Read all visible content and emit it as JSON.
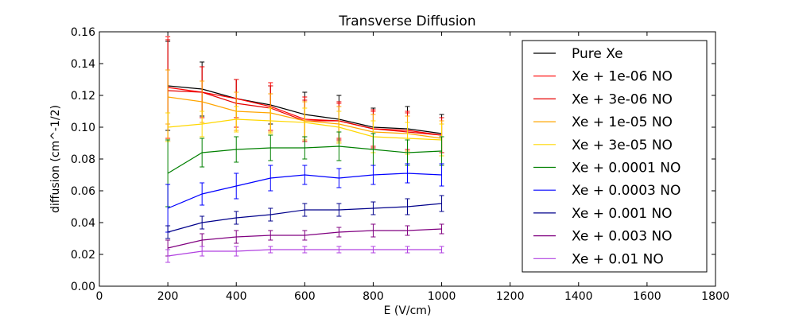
{
  "chart_data": {
    "type": "line",
    "title": "Transverse Diffusion",
    "xlabel": "E (V/cm)",
    "ylabel": "diffusion (cm^-1/2)",
    "xlim": [
      0,
      1800
    ],
    "ylim": [
      0.0,
      0.16
    ],
    "x_ticks": [
      "0",
      "200",
      "400",
      "600",
      "800",
      "1000",
      "1200",
      "1400",
      "1600",
      "1800"
    ],
    "y_ticks": [
      "0.00",
      "0.02",
      "0.04",
      "0.06",
      "0.08",
      "0.10",
      "0.12",
      "0.14",
      "0.16"
    ],
    "grid": false,
    "legend_position": "top-right",
    "x": [
      200,
      300,
      400,
      500,
      600,
      700,
      800,
      900,
      1000
    ],
    "series": [
      {
        "name": "Pure Xe",
        "color": "#000000",
        "values": [
          0.126,
          0.124,
          0.118,
          0.114,
          0.108,
          0.105,
          0.1,
          0.099,
          0.096
        ],
        "errors": [
          0.028,
          0.017,
          0.012,
          0.012,
          0.014,
          0.015,
          0.012,
          0.014,
          0.012
        ]
      },
      {
        "name": "Xe + 1e-06 NO",
        "color": "#ff0000",
        "values": [
          0.125,
          0.122,
          0.118,
          0.113,
          0.105,
          0.104,
          0.099,
          0.098,
          0.095
        ],
        "errors": [
          0.032,
          0.016,
          0.012,
          0.015,
          0.014,
          0.011,
          0.011,
          0.012,
          0.011
        ]
      },
      {
        "name": "Xe + 3e-06 NO",
        "color": "#e60000",
        "values": [
          0.123,
          0.122,
          0.115,
          0.112,
          0.104,
          0.104,
          0.099,
          0.097,
          0.095
        ],
        "errors": [
          0.032,
          0.016,
          0.015,
          0.014,
          0.013,
          0.012,
          0.012,
          0.012,
          0.011
        ]
      },
      {
        "name": "Xe + 1e-05 NO",
        "color": "#ffa500",
        "values": [
          0.119,
          0.116,
          0.11,
          0.109,
          0.104,
          0.102,
          0.097,
          0.096,
          0.093
        ],
        "errors": [
          0.017,
          0.013,
          0.012,
          0.012,
          0.012,
          0.011,
          0.011,
          0.011,
          0.011
        ]
      },
      {
        "name": "Xe + 3e-05 NO",
        "color": "#ffd700",
        "values": [
          0.1,
          0.102,
          0.105,
          0.104,
          0.103,
          0.1,
          0.094,
          0.093,
          0.092
        ],
        "errors": [
          0.009,
          0.008,
          0.008,
          0.008,
          0.009,
          0.01,
          0.01,
          0.01,
          0.01
        ]
      },
      {
        "name": "Xe + 0.0001 NO",
        "color": "#008000",
        "values": [
          0.071,
          0.084,
          0.086,
          0.087,
          0.087,
          0.088,
          0.086,
          0.084,
          0.085
        ],
        "errors": [
          0.021,
          0.009,
          0.008,
          0.008,
          0.007,
          0.009,
          0.01,
          0.008,
          0.009
        ]
      },
      {
        "name": "Xe + 0.0003 NO",
        "color": "#0000ff",
        "values": [
          0.049,
          0.058,
          0.063,
          0.068,
          0.07,
          0.068,
          0.07,
          0.071,
          0.07
        ],
        "errors": [
          0.015,
          0.007,
          0.008,
          0.008,
          0.006,
          0.006,
          0.006,
          0.006,
          0.007
        ]
      },
      {
        "name": "Xe + 0.001 NO",
        "color": "#00008b",
        "values": [
          0.034,
          0.04,
          0.043,
          0.045,
          0.048,
          0.048,
          0.049,
          0.05,
          0.052
        ],
        "errors": [
          0.004,
          0.004,
          0.004,
          0.004,
          0.004,
          0.004,
          0.004,
          0.005,
          0.005
        ]
      },
      {
        "name": "Xe + 0.003 NO",
        "color": "#800080",
        "values": [
          0.024,
          0.029,
          0.031,
          0.032,
          0.032,
          0.034,
          0.035,
          0.035,
          0.036
        ],
        "errors": [
          0.005,
          0.004,
          0.004,
          0.003,
          0.003,
          0.003,
          0.004,
          0.003,
          0.003
        ]
      },
      {
        "name": "Xe + 0.01 NO",
        "color": "#b040e0",
        "values": [
          0.019,
          0.022,
          0.022,
          0.023,
          0.023,
          0.023,
          0.023,
          0.023,
          0.023
        ],
        "errors": [
          0.004,
          0.003,
          0.003,
          0.002,
          0.002,
          0.002,
          0.002,
          0.002,
          0.002
        ]
      }
    ]
  }
}
